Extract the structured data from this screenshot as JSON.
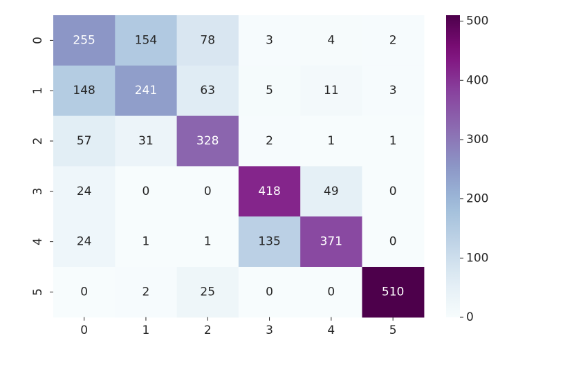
{
  "chart_data": {
    "type": "heatmap",
    "title": "",
    "xlabel": "",
    "ylabel": "",
    "x_categories": [
      "0",
      "1",
      "2",
      "3",
      "4",
      "5"
    ],
    "y_categories": [
      "0",
      "1",
      "2",
      "3",
      "4",
      "5"
    ],
    "values": [
      [
        255,
        154,
        78,
        3,
        4,
        2
      ],
      [
        148,
        241,
        63,
        5,
        11,
        3
      ],
      [
        57,
        31,
        328,
        2,
        1,
        1
      ],
      [
        24,
        0,
        0,
        418,
        49,
        0
      ],
      [
        24,
        1,
        1,
        135,
        371,
        0
      ],
      [
        0,
        2,
        25,
        0,
        0,
        510
      ]
    ],
    "colormap": "BuPu",
    "colorbar": {
      "min": 0,
      "max": 510,
      "ticks": [
        0,
        100,
        200,
        300,
        400,
        500
      ],
      "tick_labels": [
        "0",
        "100",
        "200",
        "300",
        "400",
        "500"
      ]
    },
    "annotations": true,
    "grid": false
  }
}
